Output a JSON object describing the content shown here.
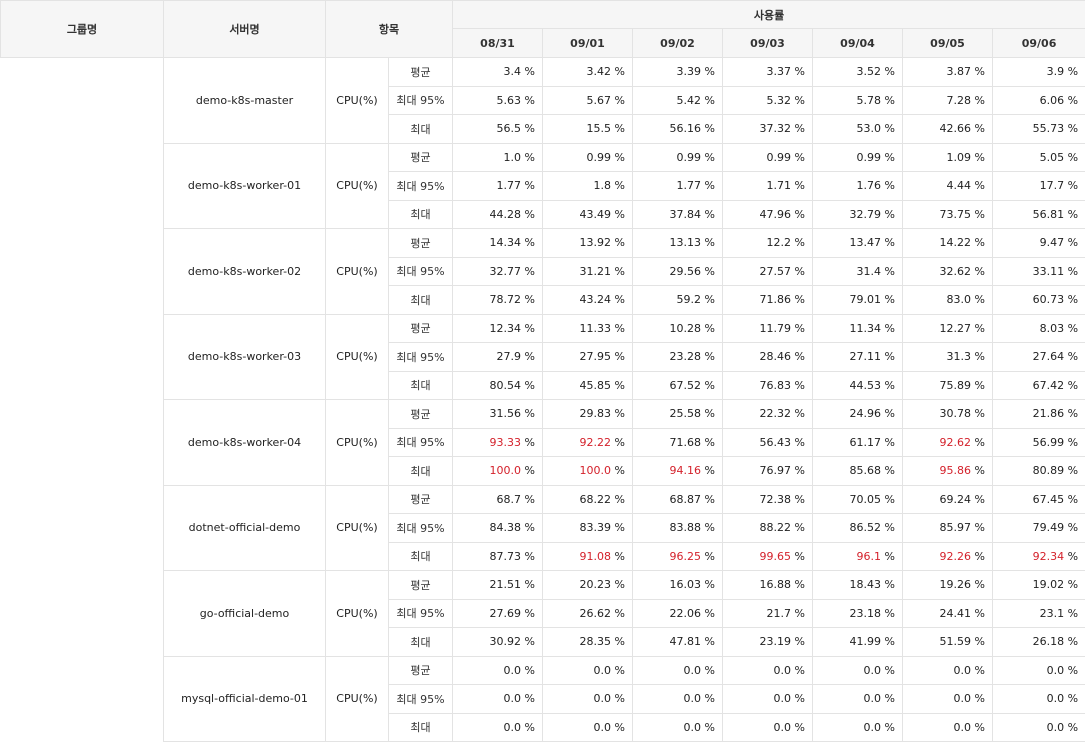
{
  "headers": {
    "group": "그룹명",
    "server": "서버명",
    "item": "항목",
    "usage": "사용률",
    "dates": [
      "08/31",
      "09/01",
      "09/02",
      "09/03",
      "09/04",
      "09/05",
      "09/06"
    ]
  },
  "unit": "%",
  "colors": {
    "warn": "#d4212b",
    "header_bg": "#f6f6f6",
    "border": "#e3e3e3"
  },
  "servers": [
    {
      "name": "demo-k8s-master",
      "item": "CPU(%)",
      "rows": [
        {
          "stat": "평균",
          "values": [
            "3.4",
            "3.42",
            "3.39",
            "3.37",
            "3.52",
            "3.87",
            "3.9"
          ],
          "warn": [
            false,
            false,
            false,
            false,
            false,
            false,
            false
          ]
        },
        {
          "stat": "최대 95%",
          "values": [
            "5.63",
            "5.67",
            "5.42",
            "5.32",
            "5.78",
            "7.28",
            "6.06"
          ],
          "warn": [
            false,
            false,
            false,
            false,
            false,
            false,
            false
          ]
        },
        {
          "stat": "최대",
          "values": [
            "56.5",
            "15.5",
            "56.16",
            "37.32",
            "53.0",
            "42.66",
            "55.73"
          ],
          "warn": [
            false,
            false,
            false,
            false,
            false,
            false,
            false
          ]
        }
      ]
    },
    {
      "name": "demo-k8s-worker-01",
      "item": "CPU(%)",
      "rows": [
        {
          "stat": "평균",
          "values": [
            "1.0",
            "0.99",
            "0.99",
            "0.99",
            "0.99",
            "1.09",
            "5.05"
          ],
          "warn": [
            false,
            false,
            false,
            false,
            false,
            false,
            false
          ]
        },
        {
          "stat": "최대 95%",
          "values": [
            "1.77",
            "1.8",
            "1.77",
            "1.71",
            "1.76",
            "4.44",
            "17.7"
          ],
          "warn": [
            false,
            false,
            false,
            false,
            false,
            false,
            false
          ]
        },
        {
          "stat": "최대",
          "values": [
            "44.28",
            "43.49",
            "37.84",
            "47.96",
            "32.79",
            "73.75",
            "56.81"
          ],
          "warn": [
            false,
            false,
            false,
            false,
            false,
            false,
            false
          ]
        }
      ]
    },
    {
      "name": "demo-k8s-worker-02",
      "item": "CPU(%)",
      "rows": [
        {
          "stat": "평균",
          "values": [
            "14.34",
            "13.92",
            "13.13",
            "12.2",
            "13.47",
            "14.22",
            "9.47"
          ],
          "warn": [
            false,
            false,
            false,
            false,
            false,
            false,
            false
          ]
        },
        {
          "stat": "최대 95%",
          "values": [
            "32.77",
            "31.21",
            "29.56",
            "27.57",
            "31.4",
            "32.62",
            "33.11"
          ],
          "warn": [
            false,
            false,
            false,
            false,
            false,
            false,
            false
          ]
        },
        {
          "stat": "최대",
          "values": [
            "78.72",
            "43.24",
            "59.2",
            "71.86",
            "79.01",
            "83.0",
            "60.73"
          ],
          "warn": [
            false,
            false,
            false,
            false,
            false,
            false,
            false
          ]
        }
      ]
    },
    {
      "name": "demo-k8s-worker-03",
      "item": "CPU(%)",
      "rows": [
        {
          "stat": "평균",
          "values": [
            "12.34",
            "11.33",
            "10.28",
            "11.79",
            "11.34",
            "12.27",
            "8.03"
          ],
          "warn": [
            false,
            false,
            false,
            false,
            false,
            false,
            false
          ]
        },
        {
          "stat": "최대 95%",
          "values": [
            "27.9",
            "27.95",
            "23.28",
            "28.46",
            "27.11",
            "31.3",
            "27.64"
          ],
          "warn": [
            false,
            false,
            false,
            false,
            false,
            false,
            false
          ]
        },
        {
          "stat": "최대",
          "values": [
            "80.54",
            "45.85",
            "67.52",
            "76.83",
            "44.53",
            "75.89",
            "67.42"
          ],
          "warn": [
            false,
            false,
            false,
            false,
            false,
            false,
            false
          ]
        }
      ]
    },
    {
      "name": "demo-k8s-worker-04",
      "item": "CPU(%)",
      "rows": [
        {
          "stat": "평균",
          "values": [
            "31.56",
            "29.83",
            "25.58",
            "22.32",
            "24.96",
            "30.78",
            "21.86"
          ],
          "warn": [
            false,
            false,
            false,
            false,
            false,
            false,
            false
          ]
        },
        {
          "stat": "최대 95%",
          "values": [
            "93.33",
            "92.22",
            "71.68",
            "56.43",
            "61.17",
            "92.62",
            "56.99"
          ],
          "warn": [
            true,
            true,
            false,
            false,
            false,
            true,
            false
          ]
        },
        {
          "stat": "최대",
          "values": [
            "100.0",
            "100.0",
            "94.16",
            "76.97",
            "85.68",
            "95.86",
            "80.89"
          ],
          "warn": [
            true,
            true,
            true,
            false,
            false,
            true,
            false
          ]
        }
      ]
    },
    {
      "name": "dotnet-official-demo",
      "item": "CPU(%)",
      "rows": [
        {
          "stat": "평균",
          "values": [
            "68.7",
            "68.22",
            "68.87",
            "72.38",
            "70.05",
            "69.24",
            "67.45"
          ],
          "warn": [
            false,
            false,
            false,
            false,
            false,
            false,
            false
          ]
        },
        {
          "stat": "최대 95%",
          "values": [
            "84.38",
            "83.39",
            "83.88",
            "88.22",
            "86.52",
            "85.97",
            "79.49"
          ],
          "warn": [
            false,
            false,
            false,
            false,
            false,
            false,
            false
          ]
        },
        {
          "stat": "최대",
          "values": [
            "87.73",
            "91.08",
            "96.25",
            "99.65",
            "96.1",
            "92.26",
            "92.34"
          ],
          "warn": [
            false,
            true,
            true,
            true,
            true,
            true,
            true
          ]
        }
      ]
    },
    {
      "name": "go-official-demo",
      "item": "CPU(%)",
      "rows": [
        {
          "stat": "평균",
          "values": [
            "21.51",
            "20.23",
            "16.03",
            "16.88",
            "18.43",
            "19.26",
            "19.02"
          ],
          "warn": [
            false,
            false,
            false,
            false,
            false,
            false,
            false
          ]
        },
        {
          "stat": "최대 95%",
          "values": [
            "27.69",
            "26.62",
            "22.06",
            "21.7",
            "23.18",
            "24.41",
            "23.1"
          ],
          "warn": [
            false,
            false,
            false,
            false,
            false,
            false,
            false
          ]
        },
        {
          "stat": "최대",
          "values": [
            "30.92",
            "28.35",
            "47.81",
            "23.19",
            "41.99",
            "51.59",
            "26.18"
          ],
          "warn": [
            false,
            false,
            false,
            false,
            false,
            false,
            false
          ]
        }
      ]
    },
    {
      "name": "mysql-official-demo-01",
      "item": "CPU(%)",
      "rows": [
        {
          "stat": "평균",
          "values": [
            "0.0",
            "0.0",
            "0.0",
            "0.0",
            "0.0",
            "0.0",
            "0.0"
          ],
          "warn": [
            false,
            false,
            false,
            false,
            false,
            false,
            false
          ]
        },
        {
          "stat": "최대 95%",
          "values": [
            "0.0",
            "0.0",
            "0.0",
            "0.0",
            "0.0",
            "0.0",
            "0.0"
          ],
          "warn": [
            false,
            false,
            false,
            false,
            false,
            false,
            false
          ]
        },
        {
          "stat": "최대",
          "values": [
            "0.0",
            "0.0",
            "0.0",
            "0.0",
            "0.0",
            "0.0",
            "0.0"
          ],
          "warn": [
            false,
            false,
            false,
            false,
            false,
            false,
            false
          ]
        }
      ]
    }
  ]
}
